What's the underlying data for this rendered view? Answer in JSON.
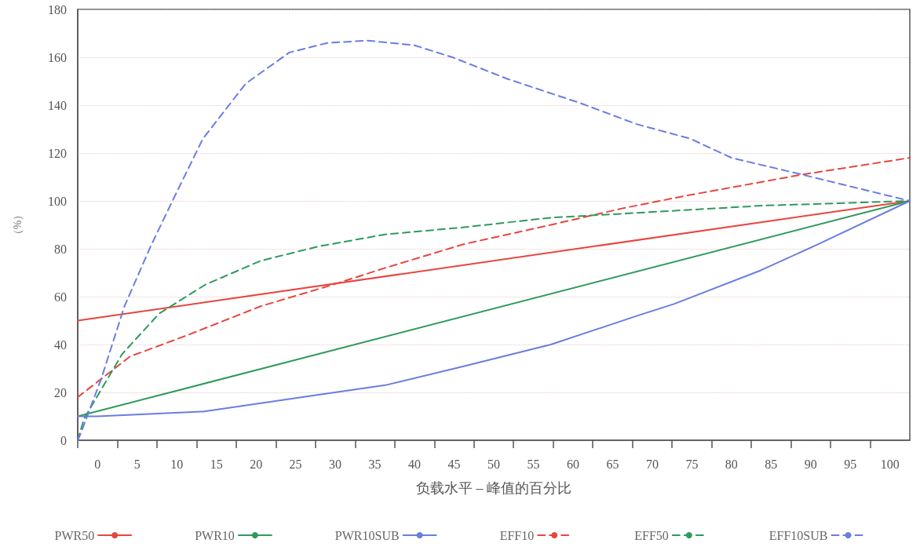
{
  "chart_data": {
    "type": "line",
    "xlabel": "负载水平 – 峰值的百分比",
    "ylabel": "（%）",
    "xlim": [
      -2.5,
      102.5
    ],
    "ylim": [
      0,
      180
    ],
    "xticks": [
      {
        "value": -2.5,
        "label": null
      },
      0,
      {
        "value": 2.5,
        "label": null
      },
      5,
      {
        "value": 7.5,
        "label": null
      },
      10,
      {
        "value": 12.5,
        "label": null
      },
      15,
      {
        "value": 17.5,
        "label": null
      },
      20,
      {
        "value": 22.5,
        "label": null
      },
      25,
      {
        "value": 27.5,
        "label": null
      },
      30,
      {
        "value": 32.5,
        "label": null
      },
      35,
      {
        "value": 37.5,
        "label": null
      },
      40,
      {
        "value": 42.5,
        "label": null
      },
      45,
      {
        "value": 47.5,
        "label": null
      },
      50,
      {
        "value": 52.5,
        "label": null
      },
      55,
      {
        "value": 57.5,
        "label": null
      },
      60,
      {
        "value": 62.5,
        "label": null
      },
      65,
      {
        "value": 67.5,
        "label": null
      },
      70,
      {
        "value": 72.5,
        "label": null
      },
      75,
      {
        "value": 77.5,
        "label": null
      },
      80,
      {
        "value": 82.5,
        "label": null
      },
      85,
      {
        "value": 87.5,
        "label": null
      },
      90,
      {
        "value": 92.5,
        "label": null
      },
      95,
      {
        "value": 97.5,
        "label": null
      },
      100
    ],
    "yticks": [
      0,
      20,
      40,
      60,
      80,
      100,
      120,
      140,
      160,
      180
    ],
    "grid": "y",
    "legend": "bottom",
    "series": [
      {
        "name": "PWR50",
        "color": "#e8453f",
        "line_style": "solid",
        "x": [
          -2.5,
          102.5
        ],
        "values": [
          50,
          100
        ]
      },
      {
        "name": "PWR10",
        "color": "#2f9a5c",
        "line_style": "solid",
        "x": [
          -2.5,
          102.5
        ],
        "values": [
          10,
          100
        ]
      },
      {
        "name": "PWR10SUB",
        "color": "#6a7de0",
        "line_style": "solid",
        "x": [
          -2.5,
          0,
          13.3,
          27.9,
          36.3,
          46.3,
          57.2,
          68.1,
          72.8,
          83.7,
          91,
          102.5
        ],
        "values": [
          10,
          10,
          12,
          19,
          23,
          31,
          40,
          52,
          57,
          71,
          82,
          100
        ]
      },
      {
        "name": "EFF10",
        "color": "#e8453f",
        "line_style": "dashed",
        "x": [
          -2.5,
          4.1,
          11.4,
          20.6,
          29.7,
          36.3,
          46.3,
          57.2,
          66.4,
          74,
          88.9,
          102.5
        ],
        "values": [
          18,
          35,
          44,
          56,
          65,
          72,
          82,
          90,
          97,
          102,
          111,
          118
        ]
      },
      {
        "name": "EFF50",
        "color": "#2f9a5c",
        "line_style": "dashed",
        "x": [
          -2.5,
          -1.7,
          3.1,
          7.8,
          13.6,
          20.6,
          27.9,
          36.3,
          46.3,
          57.2,
          68.1,
          83.7,
          102.5
        ],
        "values": [
          0,
          9,
          36,
          53,
          65,
          75,
          81,
          86,
          89,
          93,
          95,
          98,
          100
        ]
      },
      {
        "name": "EFF10SUB",
        "color": "#6a7de0",
        "line_style": "dashed",
        "x": [
          -2.5,
          -2.1,
          0.5,
          3.4,
          6.7,
          9.6,
          13.3,
          18.7,
          24.2,
          29,
          34.1,
          40,
          44.8,
          51.7,
          60.8,
          68.1,
          74.8,
          80,
          88.9,
          102.5
        ],
        "values": [
          0,
          3,
          26,
          56,
          81,
          101,
          126,
          149,
          162,
          166,
          167,
          165,
          160,
          151,
          141,
          132,
          126,
          118,
          111,
          100
        ]
      }
    ]
  }
}
